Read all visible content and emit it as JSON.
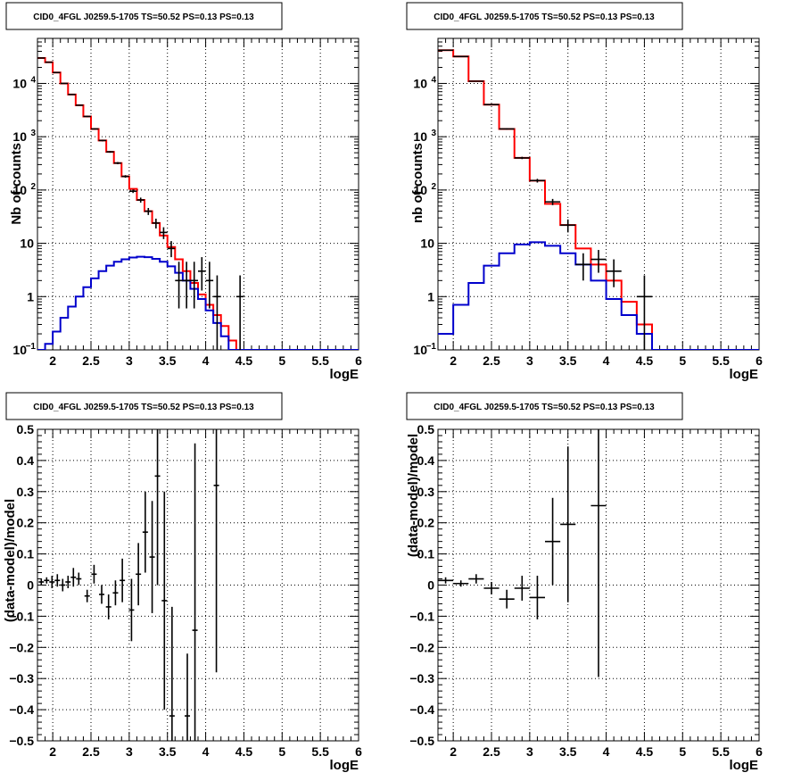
{
  "colors": {
    "background": "#ffffff",
    "frame": "#000000",
    "grid": "#000000",
    "total_model": "#ff0000",
    "source_model": "#0000cc",
    "data": "#000000"
  },
  "chart_data": [
    {
      "type": "line",
      "title": "CID0_4FGL J0259.5-1705 TS=50.52 PS=0.13 PS=0.13",
      "xlabel": "logE",
      "ylabel": "Nb of counts",
      "xlim": [
        1.8,
        6.0
      ],
      "ylim": [
        0.1,
        70000
      ],
      "yscale": "log",
      "grid": true,
      "x_ticks": [
        "2",
        "2.5",
        "3",
        "3.5",
        "4",
        "4.5",
        "5",
        "5.5",
        "6"
      ],
      "bin_edges": [
        1.8,
        1.9,
        2.0,
        2.1,
        2.2,
        2.3,
        2.4,
        2.5,
        2.6,
        2.7,
        2.8,
        2.9,
        3.0,
        3.1,
        3.2,
        3.3,
        3.4,
        3.5,
        3.6,
        3.7,
        3.8,
        3.9,
        4.0,
        4.1,
        4.2,
        4.3,
        4.4,
        4.5,
        4.6,
        4.7,
        4.8,
        4.9,
        5.0,
        5.1,
        5.2,
        5.3,
        5.4,
        5.5,
        5.6,
        5.7,
        5.8,
        5.9,
        6.0
      ],
      "series": [
        {
          "kind": "step",
          "color": "#ff0000",
          "values": [
            30000,
            25000,
            16000,
            10000,
            6200,
            3900,
            2400,
            1400,
            850,
            520,
            320,
            180,
            105,
            65,
            40,
            24,
            14,
            8.5,
            5,
            3,
            1.8,
            1.1,
            0.7,
            0.45,
            0.28,
            0.15,
            0.1,
            0.1,
            0.1,
            0.1,
            0.1,
            0.1,
            0.1,
            0.1,
            0.1,
            0.1,
            0.1,
            0.1,
            0.1,
            0.1,
            0.1,
            0.1
          ]
        },
        {
          "kind": "step",
          "color": "#0000cc",
          "values": [
            0.1,
            0.13,
            0.22,
            0.4,
            0.65,
            1.0,
            1.5,
            2.2,
            3.0,
            3.8,
            4.5,
            5.0,
            5.4,
            5.6,
            5.5,
            5.1,
            4.5,
            3.7,
            2.8,
            2.0,
            1.4,
            0.9,
            0.55,
            0.32,
            0.18,
            0.1,
            0.1,
            0.1,
            0.1,
            0.1,
            0.1,
            0.1,
            0.1,
            0.1,
            0.1,
            0.1,
            0.1,
            0.1,
            0.1,
            0.1,
            0.1,
            0.1
          ]
        },
        {
          "kind": "points",
          "color": "#000000",
          "x": [
            1.85,
            1.95,
            2.05,
            2.15,
            2.25,
            2.35,
            2.45,
            2.55,
            2.65,
            2.75,
            2.85,
            2.95,
            3.05,
            3.15,
            3.25,
            3.35,
            3.45,
            3.55,
            3.65,
            3.75,
            3.85,
            3.95,
            4.05,
            4.15,
            4.45
          ],
          "y": [
            30000,
            25000,
            16000,
            10000,
            6200,
            3900,
            2400,
            1400,
            850,
            520,
            320,
            180,
            95,
            65,
            40,
            24,
            16,
            8,
            2,
            2,
            2,
            3,
            2,
            1,
            1
          ],
          "ylo": [
            29700,
            24700,
            15750,
            9800,
            6050,
            3800,
            2330,
            1360,
            820,
            500,
            305,
            170,
            88,
            58,
            34,
            19,
            12,
            5.5,
            0.6,
            0.6,
            0.6,
            1.3,
            0.6,
            0.1,
            0.1
          ],
          "yhi": [
            30300,
            25300,
            16250,
            10200,
            6350,
            4000,
            2470,
            1440,
            880,
            540,
            335,
            190,
            102,
            72,
            46,
            29,
            20,
            11,
            4.5,
            4.5,
            4.5,
            5.5,
            4.5,
            2.5,
            2.5
          ]
        }
      ]
    },
    {
      "type": "line",
      "title": "CID0_4FGL J0259.5-1705 TS=50.52 PS=0.13 PS=0.13",
      "xlabel": "logE",
      "ylabel": "nb of counts",
      "xlim": [
        1.8,
        6.0
      ],
      "ylim": [
        0.1,
        70000
      ],
      "yscale": "log",
      "grid": true,
      "x_ticks": [
        "2",
        "2.5",
        "3",
        "3.5",
        "4",
        "4.5",
        "5",
        "5.5",
        "6"
      ],
      "bin_edges": [
        1.8,
        2.0,
        2.2,
        2.4,
        2.6,
        2.8,
        3.0,
        3.2,
        3.4,
        3.6,
        3.8,
        4.0,
        4.2,
        4.4,
        4.6,
        4.8,
        5.0,
        5.2,
        5.4,
        5.6,
        5.8,
        6.0
      ],
      "series": [
        {
          "kind": "step",
          "color": "#ff0000",
          "values": [
            42000,
            32000,
            11000,
            4000,
            1400,
            400,
            150,
            55,
            22,
            8,
            4,
            2,
            0.8,
            0.3,
            0.1,
            0.1,
            0.1,
            0.1,
            0.1,
            0.1,
            0.1
          ]
        },
        {
          "kind": "step",
          "color": "#0000cc",
          "values": [
            0.2,
            0.7,
            1.8,
            3.8,
            6.5,
            9.5,
            10.5,
            9,
            6.5,
            4,
            2,
            0.9,
            0.45,
            0.2,
            0.1,
            0.1,
            0.1,
            0.1,
            0.1,
            0.1,
            0.1
          ]
        },
        {
          "kind": "points",
          "color": "#000000",
          "x": [
            1.9,
            2.1,
            2.3,
            2.5,
            2.7,
            2.9,
            3.1,
            3.3,
            3.5,
            3.7,
            3.9,
            4.1,
            4.5
          ],
          "y": [
            42000,
            32000,
            11000,
            4000,
            1400,
            400,
            150,
            60,
            22,
            4,
            5,
            3,
            1
          ],
          "ylo": [
            41800,
            31800,
            10900,
            3940,
            1360,
            380,
            138,
            52,
            16,
            2,
            2.8,
            1.5,
            0.1
          ],
          "yhi": [
            42200,
            32200,
            11100,
            4060,
            1440,
            420,
            162,
            68,
            28,
            6.5,
            7.5,
            5,
            2.5
          ]
        }
      ]
    },
    {
      "type": "scatter",
      "title": "CID0_4FGL J0259.5-1705 TS=50.52 PS=0.13 PS=0.13",
      "xlabel": "logE",
      "ylabel": "(data-model)/model",
      "xlim": [
        1.8,
        6.0
      ],
      "ylim": [
        -0.5,
        0.5
      ],
      "grid": true,
      "x_ticks": [
        "2",
        "2.5",
        "3",
        "3.5",
        "4",
        "4.5",
        "5",
        "5.5",
        "6"
      ],
      "y_ticks": [
        "−0.5",
        "−0.4",
        "−0.3",
        "−0.2",
        "−0.1",
        "0",
        "0.1",
        "0.2",
        "0.3",
        "0.4",
        "0.5"
      ],
      "points": {
        "x": [
          1.85,
          1.92,
          1.99,
          2.06,
          2.13,
          2.2,
          2.27,
          2.34,
          2.45,
          2.54,
          2.64,
          2.73,
          2.82,
          2.91,
          3.03,
          3.12,
          3.21,
          3.3,
          3.37,
          3.46,
          3.56,
          3.76,
          3.86,
          4.14
        ],
        "y": [
          0.01,
          0.015,
          0.01,
          0.015,
          0.0,
          0.01,
          0.025,
          0.02,
          -0.035,
          0.035,
          -0.03,
          -0.07,
          -0.025,
          0.015,
          -0.08,
          0.035,
          0.17,
          0.09,
          0.35,
          -0.05,
          -0.42,
          -0.42,
          -0.145,
          0.32
        ],
        "err": [
          0.01,
          0.01,
          0.02,
          0.02,
          0.02,
          0.02,
          0.03,
          0.02,
          0.02,
          0.03,
          0.03,
          0.04,
          0.04,
          0.07,
          0.1,
          0.1,
          0.13,
          0.18,
          0.35,
          0.35,
          0.35,
          0.2,
          0.6,
          0.6
        ],
        "xerr": 0.035
      }
    },
    {
      "type": "scatter",
      "title": "CID0_4FGL J0259.5-1705 TS=50.52 PS=0.13 PS=0.13",
      "xlabel": "logE",
      "ylabel": "(data-model)/model",
      "xlim": [
        1.8,
        6.0
      ],
      "ylim": [
        -0.5,
        0.5
      ],
      "grid": true,
      "x_ticks": [
        "2",
        "2.5",
        "3",
        "3.5",
        "4",
        "4.5",
        "5",
        "5.5",
        "6"
      ],
      "y_ticks": [
        "−0.5",
        "−0.4",
        "−0.3",
        "−0.2",
        "−0.1",
        "0",
        "0.1",
        "0.2",
        "0.3",
        "0.4",
        "0.5"
      ],
      "points": {
        "x": [
          1.9,
          2.1,
          2.3,
          2.5,
          2.7,
          2.9,
          3.1,
          3.3,
          3.5,
          3.9
        ],
        "y": [
          0.015,
          0.005,
          0.02,
          -0.01,
          -0.045,
          -0.01,
          -0.04,
          0.14,
          0.195,
          0.255
        ],
        "err": [
          0.01,
          0.01,
          0.015,
          0.02,
          0.03,
          0.04,
          0.07,
          0.14,
          0.25,
          0.55
        ],
        "xerr": 0.1
      }
    }
  ]
}
